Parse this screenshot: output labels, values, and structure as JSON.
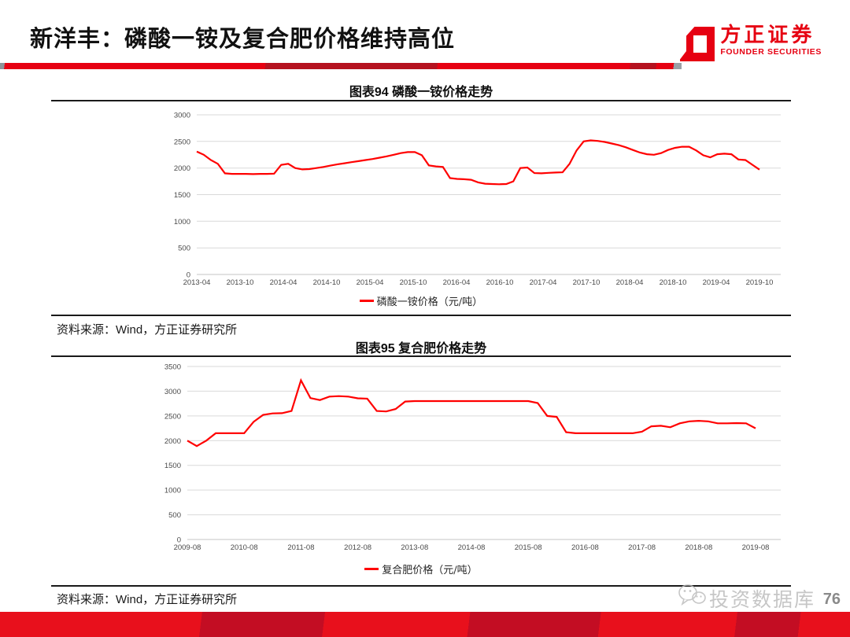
{
  "slide": {
    "title": "新洋丰：磷酸一铵及复合肥价格维持高位",
    "page_number": "76",
    "watermark_text": "投资数据库",
    "brand_red": "#e60012"
  },
  "logo": {
    "name_cn": "方正证券",
    "name_en": "FOUNDER SECURITIES"
  },
  "chart_data": [
    {
      "type": "line",
      "title": "图表94 磷酸一铵价格走势",
      "source": "资料来源：Wind，方正证券研究所",
      "grid": true,
      "legend_position": "bottom",
      "ylim": [
        0,
        3000
      ],
      "y_ticks": [
        0,
        500,
        1000,
        1500,
        2000,
        2500,
        3000
      ],
      "x_tick_labels": [
        "2013-04",
        "2013-10",
        "2014-04",
        "2014-10",
        "2015-04",
        "2015-10",
        "2016-04",
        "2016-10",
        "2017-04",
        "2017-10",
        "2018-04",
        "2018-10",
        "2019-04",
        "2019-10"
      ],
      "series": [
        {
          "name": "磷酸一铵价格（元/吨）",
          "color": "#ff0000",
          "values": [
            2310,
            2250,
            2150,
            2080,
            1900,
            1890,
            1890,
            1890,
            1885,
            1890,
            1890,
            1895,
            2060,
            2080,
            2000,
            1975,
            1980,
            2000,
            2020,
            2045,
            2070,
            2090,
            2110,
            2130,
            2150,
            2170,
            2195,
            2220,
            2250,
            2280,
            2300,
            2300,
            2240,
            2050,
            2030,
            2020,
            1810,
            1795,
            1790,
            1780,
            1730,
            1705,
            1700,
            1695,
            1700,
            1750,
            2000,
            2010,
            1905,
            1900,
            1910,
            1915,
            1920,
            2080,
            2330,
            2500,
            2520,
            2510,
            2490,
            2460,
            2430,
            2390,
            2340,
            2290,
            2260,
            2250,
            2280,
            2340,
            2380,
            2400,
            2400,
            2330,
            2240,
            2200,
            2260,
            2270,
            2260,
            2160,
            2150,
            2060,
            1970
          ]
        }
      ]
    },
    {
      "type": "line",
      "title": "图表95 复合肥价格走势",
      "source": "资料来源：Wind，方正证券研究所",
      "grid": true,
      "legend_position": "bottom",
      "ylim": [
        0,
        3500
      ],
      "y_ticks": [
        0,
        500,
        1000,
        1500,
        2000,
        2500,
        3000,
        3500
      ],
      "x_tick_labels": [
        "2009-08",
        "2010-08",
        "2011-08",
        "2012-08",
        "2013-08",
        "2014-08",
        "2015-08",
        "2016-08",
        "2017-08",
        "2018-08",
        "2019-08"
      ],
      "series": [
        {
          "name": "复合肥价格（元/吨）",
          "color": "#ff0000",
          "values": [
            2000,
            1890,
            2000,
            2150,
            2150,
            2150,
            2150,
            2380,
            2520,
            2550,
            2555,
            2600,
            3220,
            2860,
            2820,
            2890,
            2900,
            2890,
            2855,
            2850,
            2600,
            2590,
            2640,
            2790,
            2800,
            2800,
            2800,
            2800,
            2800,
            2800,
            2800,
            2800,
            2800,
            2800,
            2800,
            2800,
            2800,
            2760,
            2500,
            2480,
            2170,
            2150,
            2150,
            2150,
            2150,
            2150,
            2150,
            2150,
            2180,
            2290,
            2300,
            2270,
            2350,
            2390,
            2400,
            2390,
            2350,
            2350,
            2355,
            2350,
            2250
          ]
        }
      ]
    }
  ]
}
